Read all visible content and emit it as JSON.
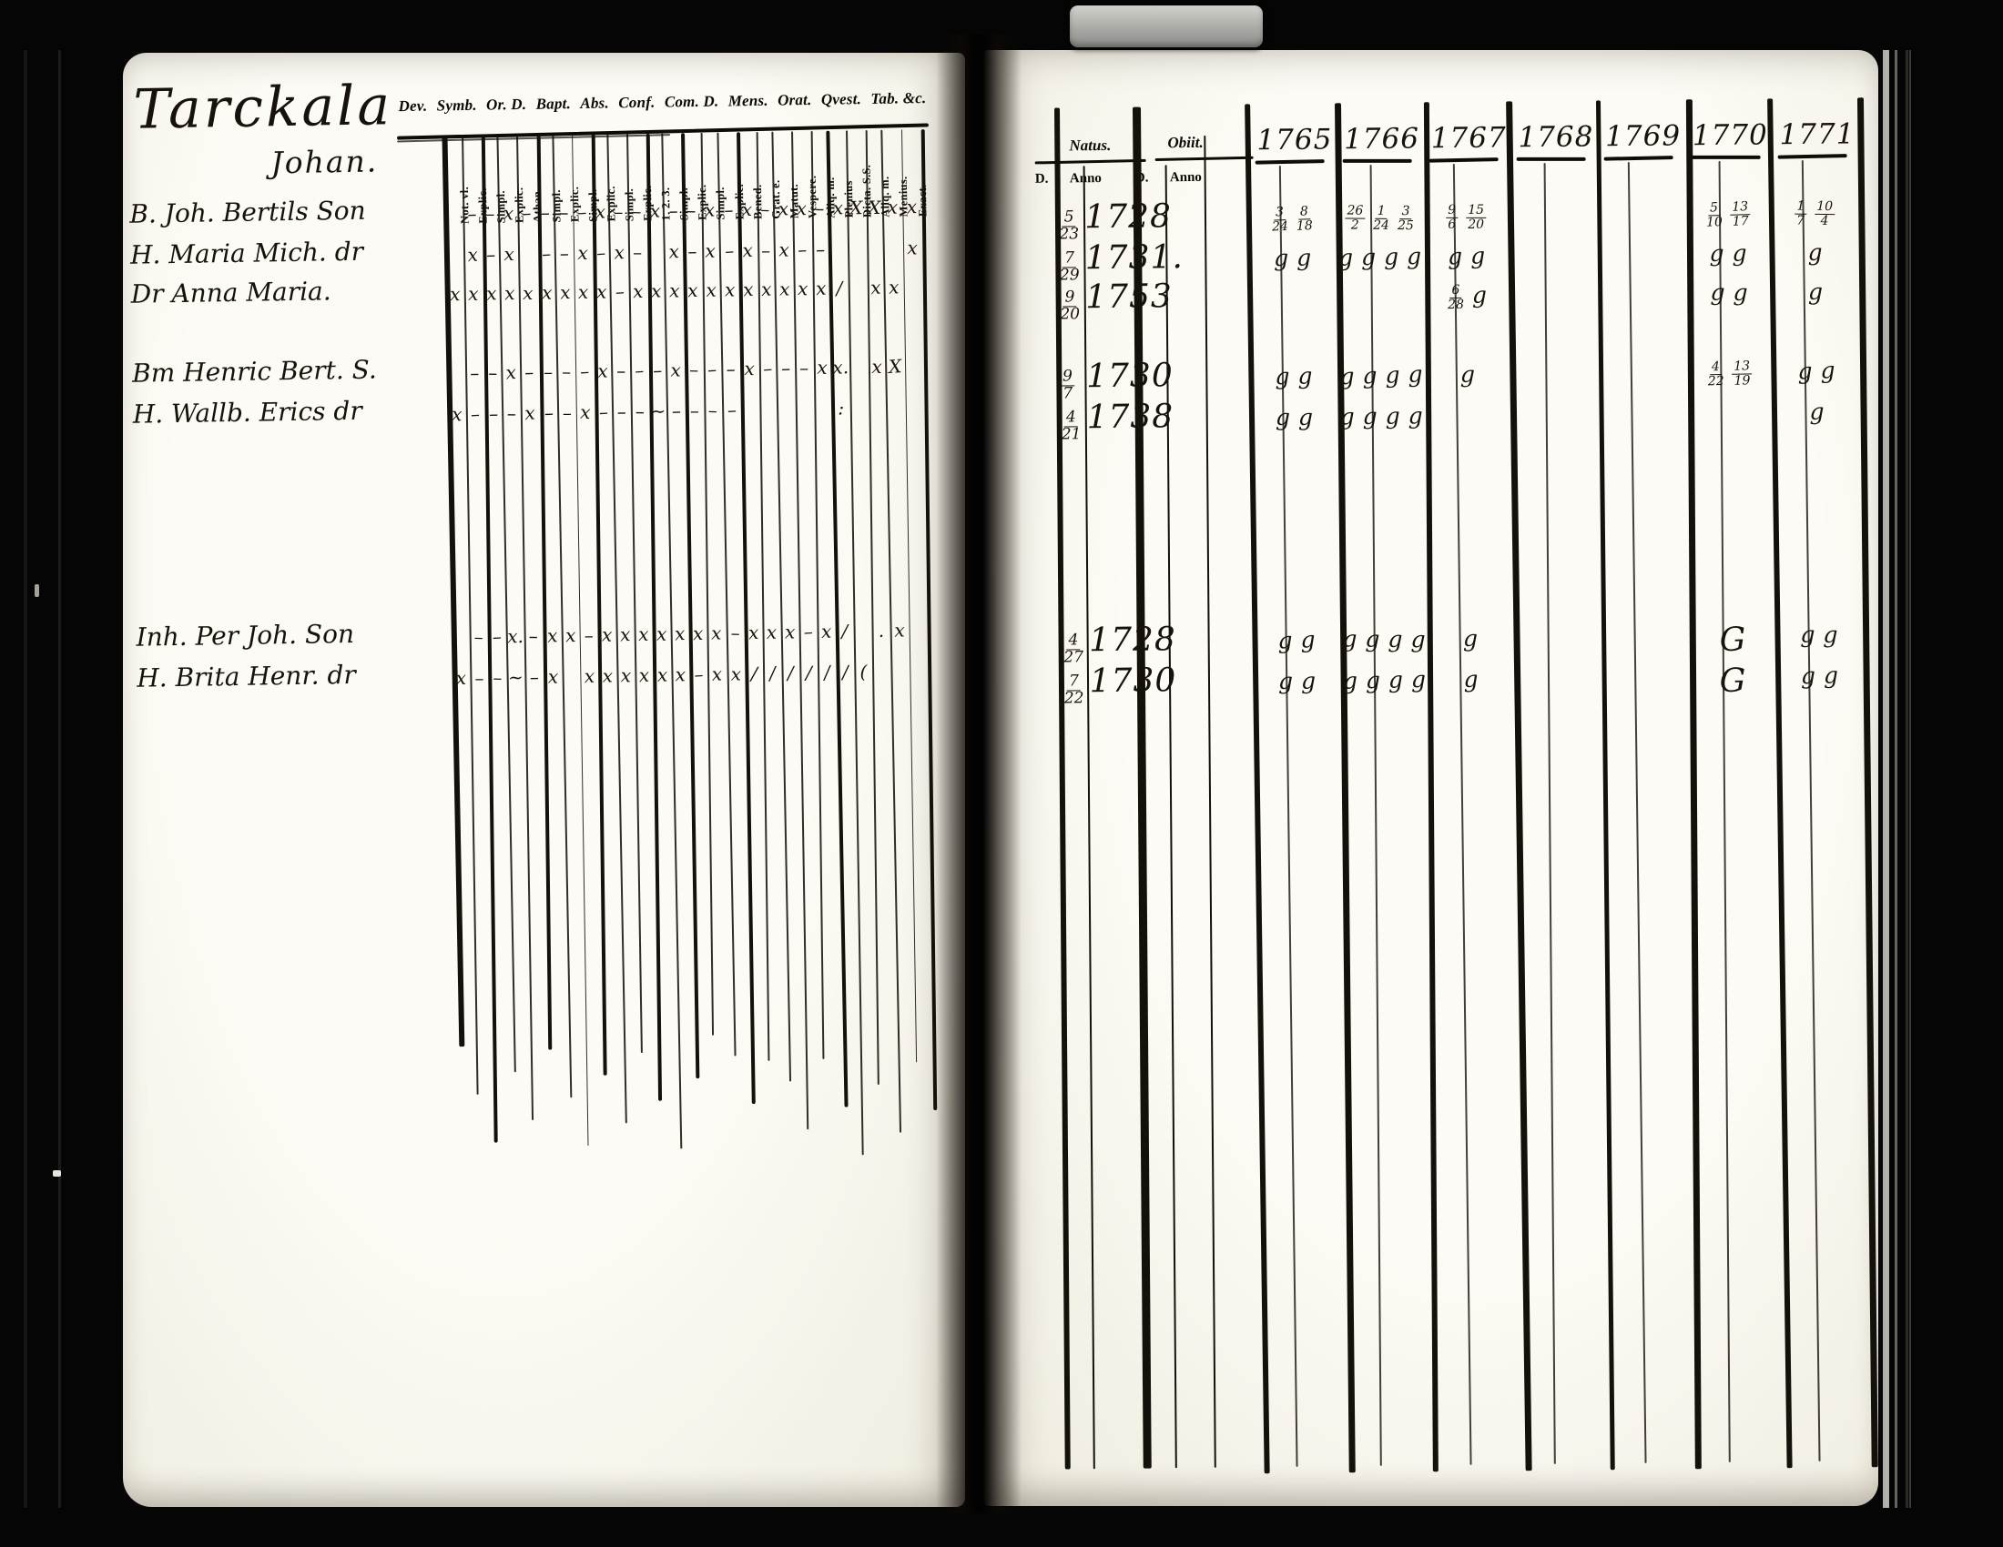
{
  "document_type": "scanned parish examination register spread",
  "colors": {
    "page_bg": "#f8f6ee",
    "ink": "#17120b",
    "printed_ink": "#0e0b07",
    "surround_black": "#060606",
    "clamp_gray": "#a9aaa5"
  },
  "left": {
    "title_script": "Tarckala",
    "household": "Johan.",
    "printed_headers": [
      "Dev.",
      "Symb.",
      "Or. D.",
      "Bapt.",
      "Abs.",
      "Conf.",
      "Com. D.",
      "Mens.",
      "Orat.",
      "Qvest.",
      "Tab. &c."
    ],
    "column_labels": [
      "Not. vl.",
      "Explic.",
      "Simpl.",
      "Explic.",
      "Athan.",
      "Simpl.",
      "Explic.",
      "Simpl.",
      "Explic.",
      "Simpl.",
      "Explic.",
      "1. 2. 3.",
      "Simpl.",
      "Explic.",
      "Simpl.",
      "Explic.",
      "Bened.",
      "Grat. e.",
      "Matut.",
      "Vespere.",
      "Aliq. m.",
      "Plenius",
      "Dicta. S.S.",
      "Aliq. m.",
      "Menius.",
      "Exact."
    ]
  },
  "right": {
    "natus_label": "Natus.",
    "obiit_label": "Obiit.",
    "sub_headers": [
      "D.",
      "Anno",
      "D.",
      "Anno"
    ],
    "years": [
      "1765",
      "1766",
      "1767",
      "1768",
      "1769",
      "1770",
      "1771"
    ]
  },
  "persons": [
    {
      "name": "B. Joh. Bertils Son",
      "marks": [
        "",
        "-",
        "-",
        "x",
        "-",
        "-",
        "-",
        "-",
        "x",
        "-",
        "-",
        "x",
        "-",
        "-",
        "x",
        "-",
        "x",
        "-",
        "x",
        "x",
        "-",
        "x",
        "X",
        "X",
        "x",
        "x"
      ],
      "natus_day": "5/23",
      "natus_year": "1728",
      "obiit": "",
      "year_marks": [
        "3/24 8/18",
        "26/2 1/24 3/25",
        "9/6 15/20",
        "",
        "",
        "5/10 13/17",
        "1/7 10/4"
      ]
    },
    {
      "name": "H. Maria Mich. dr",
      "marks": [
        "",
        "x",
        "-",
        "x",
        "",
        "-",
        "-",
        "x",
        "-",
        "x",
        "-",
        "",
        "x",
        "-",
        "x",
        "-",
        "x",
        "-",
        "x",
        "-",
        "-",
        "",
        "",
        "",
        "",
        "x"
      ],
      "natus_day": "7/29",
      "natus_year": "1731.",
      "obiit": "",
      "year_marks": [
        "g g",
        "g g g g",
        "g g",
        "",
        "",
        "g g",
        "g"
      ]
    },
    {
      "name": "Dr Anna Maria.",
      "marks": [
        "x",
        "x",
        "x",
        "x",
        "x",
        "x",
        "x",
        "x",
        "x",
        "-",
        "x",
        "x",
        "x",
        "x",
        "x",
        "x",
        "x",
        "x",
        "x",
        "x",
        "x",
        "/",
        "",
        "x",
        "x",
        ""
      ],
      "natus_day": "9/20",
      "natus_year": "1753",
      "obiit": "",
      "year_marks": [
        "",
        "",
        "6/28 g",
        "",
        "",
        "g g",
        "g"
      ]
    },
    {
      "name": "Bm Henric Bert. S.",
      "marks": [
        "",
        "-",
        "-",
        "x",
        "-",
        "-",
        "-",
        "-",
        "x",
        "-",
        "-",
        "-",
        "x",
        "-",
        "-",
        "-",
        "x",
        "-",
        "-",
        "-",
        "x",
        "x.",
        "",
        "x",
        "X",
        ""
      ],
      "natus_day": "9/7",
      "natus_year": "1730",
      "obiit": "",
      "year_marks": [
        "g g",
        "g g g g",
        "g",
        "",
        "",
        "4/22 13/19",
        "g g"
      ]
    },
    {
      "name": "H. Wallb. Erics dr",
      "marks": [
        "x",
        "-",
        "-",
        "-",
        "x",
        "-",
        "-",
        "x",
        "-",
        "-",
        "-",
        "~",
        "-",
        "-",
        "-",
        "-",
        "",
        "",
        "",
        "",
        "",
        ":",
        "",
        "",
        "",
        ""
      ],
      "natus_day": "4/21",
      "natus_year": "1738",
      "obiit": "",
      "year_marks": [
        "g g",
        "g g g g",
        "",
        "",
        "",
        "",
        "g"
      ]
    },
    {
      "name": "Inh. Per Joh. Son",
      "marks": [
        "",
        "-",
        "-",
        "x.",
        "-",
        "x",
        "x",
        "-",
        "x",
        "x",
        "x",
        "x",
        "x",
        "x",
        "x",
        "-",
        "x",
        "x",
        "x",
        "-",
        "x",
        "/",
        "",
        ".",
        "x",
        ""
      ],
      "natus_day": "4/27",
      "natus_year": "1728",
      "obiit": "",
      "year_marks": [
        "g g",
        "g g g g",
        "g",
        "",
        "",
        "G",
        "g g"
      ]
    },
    {
      "name": "H. Brita Henr. dr",
      "marks": [
        "x",
        "-",
        "-",
        "~",
        "-",
        "x",
        "",
        "x",
        "x",
        "x",
        "x",
        "x",
        "x",
        "-",
        "x",
        "x",
        "/",
        "/",
        "/",
        "/",
        "/",
        "/",
        "(",
        "",
        "",
        ""
      ],
      "natus_day": "7/22",
      "natus_year": "1730",
      "obiit": "",
      "year_marks": [
        "g g",
        "g g g g",
        "g",
        "",
        "",
        "G",
        "g g"
      ]
    }
  ]
}
